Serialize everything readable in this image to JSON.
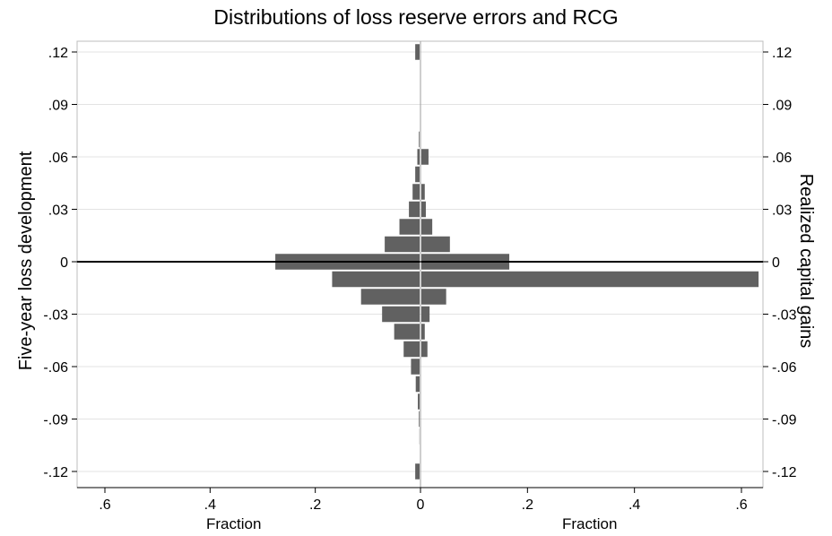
{
  "chart_data": {
    "type": "bar",
    "orientation": "horizontal",
    "title": "Distributions of loss reserve errors and RCG",
    "y_left_label": "Five-year loss development",
    "y_right_label": "Realized capital gains",
    "x_label_left": "Fraction",
    "x_label_right": "Fraction",
    "y_ticks": [
      ".12",
      ".09",
      ".06",
      ".03",
      "0",
      "-.03",
      "-.06",
      "-.09",
      "-.12"
    ],
    "y_tick_values": [
      0.12,
      0.09,
      0.06,
      0.03,
      0,
      -0.03,
      -0.06,
      -0.09,
      -0.12
    ],
    "x_ticks_left": [
      ".6",
      ".4",
      ".2",
      "0"
    ],
    "x_ticks_left_values": [
      0.6,
      0.4,
      0.2,
      0
    ],
    "x_ticks_right": [
      ".2",
      ".4",
      ".6"
    ],
    "x_ticks_right_values": [
      0.2,
      0.4,
      0.6
    ],
    "ylim": [
      -0.1266,
      0.1266
    ],
    "xlim_left": [
      0,
      0.6
    ],
    "xlim_right": [
      0,
      0.6
    ],
    "bin_width": 0.01,
    "grid": true,
    "bar_color": "#616161",
    "series": [
      {
        "name": "Five-year loss development",
        "side": "left",
        "bins": [
          {
            "y": 0.12,
            "value": 0.01
          },
          {
            "y": 0.07,
            "value": 0.003
          },
          {
            "y": 0.06,
            "value": 0.006
          },
          {
            "y": 0.05,
            "value": 0.01
          },
          {
            "y": 0.04,
            "value": 0.015
          },
          {
            "y": 0.03,
            "value": 0.022
          },
          {
            "y": 0.02,
            "value": 0.04
          },
          {
            "y": 0.01,
            "value": 0.068
          },
          {
            "y": 0.0,
            "value": 0.276
          },
          {
            "y": -0.01,
            "value": 0.168
          },
          {
            "y": -0.02,
            "value": 0.113
          },
          {
            "y": -0.03,
            "value": 0.073
          },
          {
            "y": -0.04,
            "value": 0.05
          },
          {
            "y": -0.05,
            "value": 0.032
          },
          {
            "y": -0.06,
            "value": 0.018
          },
          {
            "y": -0.07,
            "value": 0.009
          },
          {
            "y": -0.08,
            "value": 0.005
          },
          {
            "y": -0.09,
            "value": 0.003
          },
          {
            "y": -0.1,
            "value": 0.002
          },
          {
            "y": -0.12,
            "value": 0.01
          }
        ]
      },
      {
        "name": "Realized capital gains",
        "side": "right",
        "bins": [
          {
            "y": 0.06,
            "value": 0.015
          },
          {
            "y": 0.04,
            "value": 0.008
          },
          {
            "y": 0.03,
            "value": 0.01
          },
          {
            "y": 0.02,
            "value": 0.022
          },
          {
            "y": 0.01,
            "value": 0.055
          },
          {
            "y": 0.0,
            "value": 0.166
          },
          {
            "y": -0.01,
            "value": 0.632
          },
          {
            "y": -0.02,
            "value": 0.048
          },
          {
            "y": -0.03,
            "value": 0.017
          },
          {
            "y": -0.04,
            "value": 0.008
          },
          {
            "y": -0.05,
            "value": 0.013
          }
        ]
      }
    ]
  }
}
